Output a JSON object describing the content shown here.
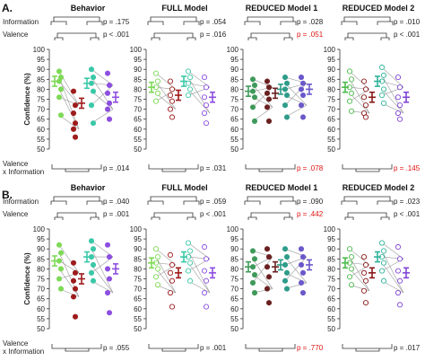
{
  "row_labels": [
    "A.",
    "B."
  ],
  "factor_labels": {
    "information": "Information",
    "valence": "Valence",
    "interaction_1": "Valence",
    "interaction_2": "x Information"
  },
  "y_axis_label": "Confidence (%)",
  "y_ticks": [
    "50",
    "55",
    "60",
    "65",
    "70",
    "75",
    "80",
    "85",
    "90",
    "95",
    "100"
  ],
  "colors": {
    "behavior": [
      "#7ed957",
      "#9e1c1c",
      "#3bc8a8",
      "#8d4fe0"
    ],
    "full": [
      "#7ed957",
      "#9e1c1c",
      "#3bc8a8",
      "#8d4fe0"
    ],
    "reduced1": [
      "#3f9a5a",
      "#6b2020",
      "#2f9c8a",
      "#6b58c9"
    ],
    "reduced2": [
      "#4cbb4c",
      "#8a1b1b",
      "#2fb39b",
      "#8145d4"
    ],
    "significant": "#222222",
    "nonsignificant": "#e01010"
  },
  "chart_data": [
    {
      "type": "scatter",
      "row": "A",
      "title": "Behavior",
      "ylabel": "Confidence (%)",
      "ylim": [
        50,
        100
      ],
      "p_information": "p = .175",
      "p_valence": "p < .001",
      "p_interaction": "p = .014",
      "p_information_sig": true,
      "p_valence_sig": true,
      "p_interaction_sig": true,
      "means": [
        84,
        73,
        83,
        76
      ],
      "points": [
        [
          89,
          86,
          84,
          80,
          76,
          67
        ],
        [
          79,
          72,
          68,
          63,
          60,
          56
        ],
        [
          90,
          86,
          83,
          79,
          72,
          63
        ],
        [
          88,
          82,
          78,
          73,
          70,
          65
        ]
      ]
    },
    {
      "type": "scatter",
      "row": "A",
      "title": "FULL Model",
      "ylabel": "",
      "ylim": [
        50,
        100
      ],
      "p_information": "p = .054",
      "p_valence": "p = .016",
      "p_interaction": "p = .031",
      "p_information_sig": true,
      "p_valence_sig": true,
      "p_interaction_sig": true,
      "means": [
        81,
        77,
        84,
        76
      ],
      "points": [
        [
          88,
          84,
          81,
          78,
          74
        ],
        [
          84,
          80,
          77,
          74,
          70,
          66
        ],
        [
          89,
          86,
          83,
          80,
          77
        ],
        [
          86,
          81,
          76,
          72,
          68,
          63
        ]
      ]
    },
    {
      "type": "scatter",
      "row": "A",
      "title": "REDUCED Model 1",
      "ylabel": "",
      "ylim": [
        50,
        100
      ],
      "p_information": "p = .028",
      "p_valence": "p = .051",
      "p_interaction": "p = .078",
      "p_information_sig": true,
      "p_valence_sig": false,
      "p_interaction_sig": false,
      "means": [
        79,
        78,
        80,
        80
      ],
      "points": [
        [
          85,
          82,
          79,
          76,
          71,
          64
        ],
        [
          84,
          81,
          78,
          75,
          71,
          64
        ],
        [
          86,
          83,
          80,
          77,
          72,
          66
        ],
        [
          86,
          83,
          80,
          77,
          72,
          66
        ]
      ]
    },
    {
      "type": "scatter",
      "row": "A",
      "title": "REDUCED Model 2",
      "ylabel": "",
      "ylim": [
        50,
        100
      ],
      "p_information": "p = .010",
      "p_valence": "p < .001",
      "p_interaction": "p = .145",
      "p_information_sig": true,
      "p_valence_sig": true,
      "p_interaction_sig": false,
      "means": [
        81,
        76,
        84,
        76
      ],
      "points": [
        [
          89,
          85,
          81,
          78,
          74,
          69
        ],
        [
          84,
          80,
          76,
          72,
          68,
          66
        ],
        [
          91,
          87,
          84,
          80,
          77,
          73
        ],
        [
          86,
          81,
          76,
          72,
          68,
          65
        ]
      ]
    },
    {
      "type": "scatter",
      "row": "B",
      "title": "Behavior",
      "ylabel": "Confidence (%)",
      "ylim": [
        50,
        100
      ],
      "p_information": "p = .040",
      "p_valence": "p = .001",
      "p_interaction": "p = .055",
      "p_information_sig": true,
      "p_valence_sig": true,
      "p_interaction_sig": true,
      "means": [
        84,
        75,
        86,
        80
      ],
      "points": [
        [
          92,
          88,
          84,
          80,
          75,
          70
        ],
        [
          83,
          78,
          74,
          70,
          66,
          56
        ],
        [
          94,
          90,
          86,
          82,
          78,
          74
        ],
        [
          92,
          86,
          80,
          75,
          68,
          58
        ]
      ]
    },
    {
      "type": "scatter",
      "row": "B",
      "title": "FULL Model",
      "ylabel": "",
      "ylim": [
        50,
        100
      ],
      "p_information": "p = .059",
      "p_valence": "p < .001",
      "p_interaction": "p = .001",
      "p_information_sig": true,
      "p_valence_sig": true,
      "p_interaction_sig": true,
      "means": [
        83,
        78,
        86,
        78
      ],
      "points": [
        [
          90,
          86,
          83,
          80,
          76,
          72
        ],
        [
          87,
          82,
          78,
          74,
          68,
          61
        ],
        [
          93,
          89,
          86,
          83,
          79,
          74
        ],
        [
          91,
          85,
          79,
          74,
          68,
          61
        ]
      ]
    },
    {
      "type": "scatter",
      "row": "B",
      "title": "REDUCED Model 1",
      "ylabel": "",
      "ylim": [
        50,
        100
      ],
      "p_information": "p = .090",
      "p_valence": "p = .442",
      "p_interaction": "p = .770",
      "p_information_sig": true,
      "p_valence_sig": false,
      "p_interaction_sig": false,
      "means": [
        81,
        81,
        82,
        82
      ],
      "points": [
        [
          89,
          85,
          81,
          77,
          73,
          68
        ],
        [
          90,
          86,
          81,
          76,
          70,
          63
        ],
        [
          90,
          86,
          82,
          78,
          74,
          70
        ],
        [
          90,
          86,
          82,
          78,
          73,
          68
        ]
      ]
    },
    {
      "type": "scatter",
      "row": "B",
      "title": "REDUCED Model 2",
      "ylabel": "",
      "ylim": [
        50,
        100
      ],
      "p_information": "p = .023",
      "p_valence": "p < .001",
      "p_interaction": "p = .017",
      "p_information_sig": true,
      "p_valence_sig": true,
      "p_interaction_sig": true,
      "means": [
        83,
        78,
        86,
        78
      ],
      "points": [
        [
          90,
          86,
          83,
          80,
          76,
          72
        ],
        [
          86,
          82,
          78,
          74,
          69,
          63
        ],
        [
          93,
          89,
          86,
          83,
          79,
          74
        ],
        [
          91,
          85,
          79,
          74,
          68,
          62
        ]
      ]
    }
  ]
}
